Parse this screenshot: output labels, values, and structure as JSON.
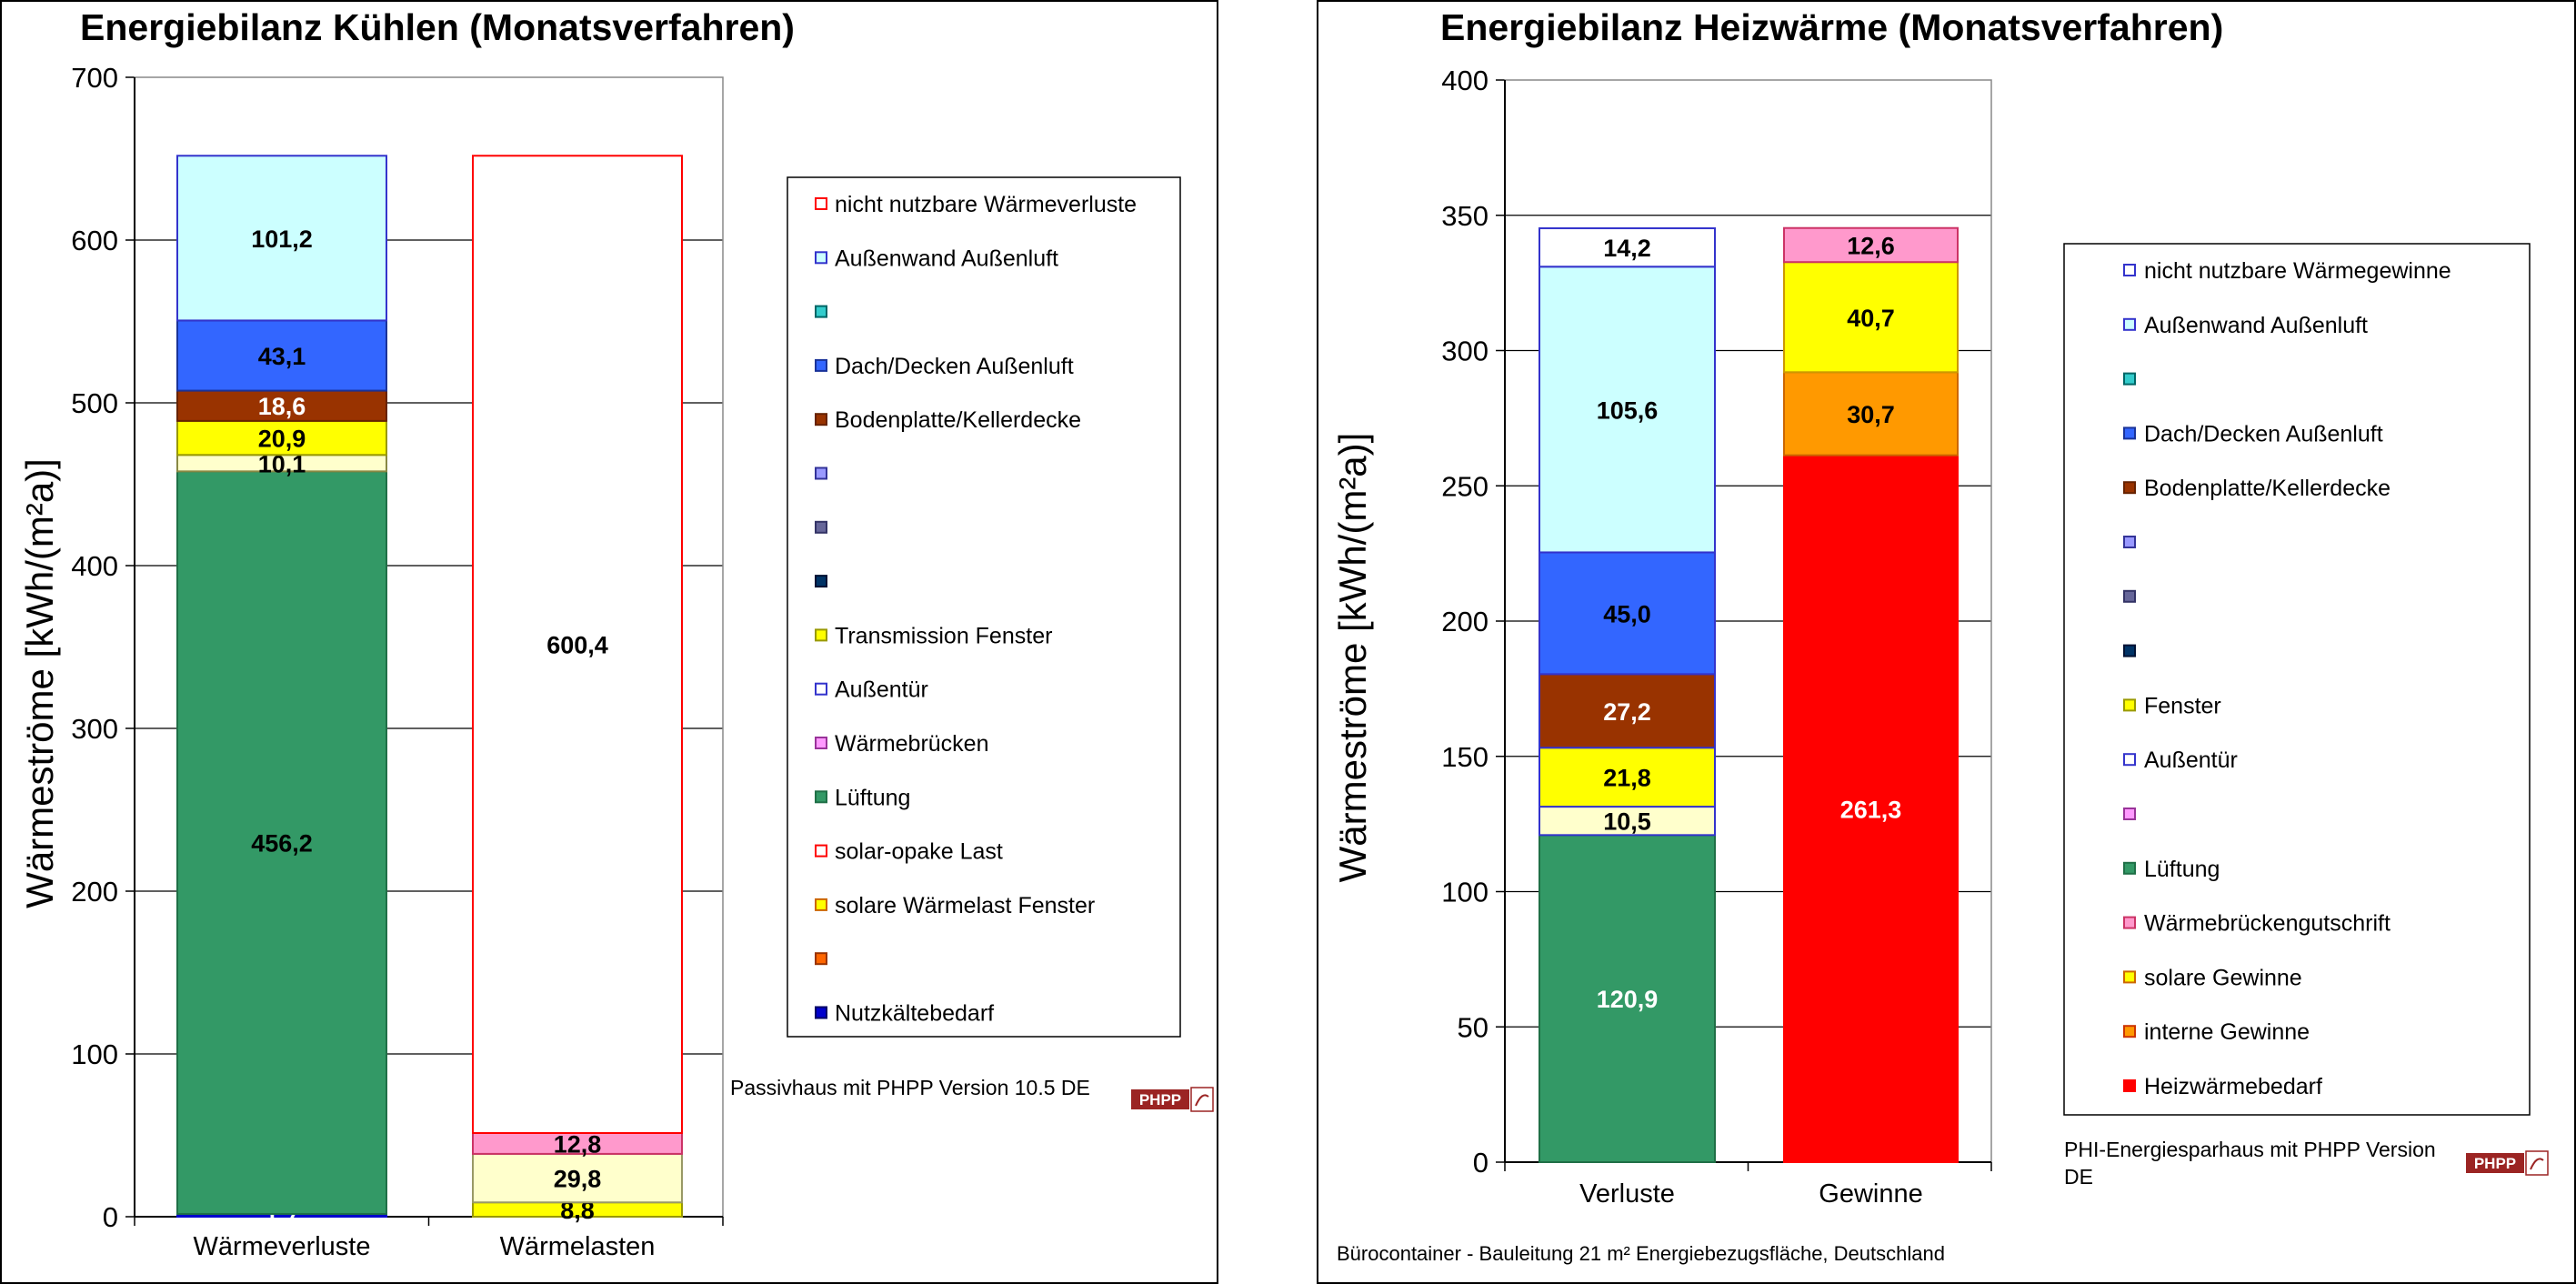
{
  "chart_data": [
    {
      "type": "bar",
      "stacked": true,
      "title": "Energiebilanz Kühlen (Monatsverfahren)",
      "ylabel": "Wärmeströme [kWh/(m²a)]",
      "ylim": [
        0,
        700
      ],
      "yticks": [
        0,
        100,
        200,
        300,
        400,
        500,
        600,
        700
      ],
      "grid": true,
      "legend_position": "right",
      "footer": "Passivhaus mit PHPP Version 10.5 DE",
      "logo_text": "PHPP",
      "categories": [
        "Wärmeverluste",
        "Wärmelasten"
      ],
      "stacks": [
        {
          "category": "Wärmeverluste",
          "segments": [
            {
              "value": 1.7,
              "label": "1,7",
              "color": "#0000CC",
              "text_color": "#ffffff",
              "border": "#0000CC"
            },
            {
              "value": 456.2,
              "label": "456,2",
              "color": "#339966",
              "text_color": "#000000",
              "border": "#1f6f46"
            },
            {
              "value": 10.1,
              "label": "10,1",
              "color": "#FFFFCC",
              "text_color": "#000000",
              "border": "#888844"
            },
            {
              "value": 20.9,
              "label": "20,9",
              "color": "#FFFF00",
              "text_color": "#000000",
              "border": "#999900"
            },
            {
              "value": 18.6,
              "label": "18,6",
              "color": "#993300",
              "text_color": "#ffffff",
              "border": "#662200"
            },
            {
              "value": 43.1,
              "label": "43,1",
              "color": "#3366FF",
              "text_color": "#000000",
              "border": "#1a3399"
            },
            {
              "value": 101.2,
              "label": "101,2",
              "color": "#CCFFFF",
              "text_color": "#000000",
              "border": "#3333CC"
            }
          ]
        },
        {
          "category": "Wärmelasten",
          "segments": [
            {
              "value": 8.8,
              "label": "8,8",
              "color": "#FFFF00",
              "text_color": "#000000",
              "border": "#999900"
            },
            {
              "value": 29.8,
              "label": "29,8",
              "color": "#FFFFCC",
              "text_color": "#000000",
              "border": "#999966"
            },
            {
              "value": 12.8,
              "label": "12,8",
              "color": "#FF99CC",
              "text_color": "#000000",
              "border": "#cc3366"
            },
            {
              "value": 600.4,
              "label": "600,4",
              "color": "#FFFFFF",
              "text_color": "#000000",
              "border": "#FF0000"
            }
          ]
        }
      ],
      "legend": [
        {
          "label": "nicht nutzbare Wärmeverluste",
          "color": "#FFFFFF",
          "border": "#FF0000"
        },
        {
          "label": "Außenwand Außenluft",
          "color": "#CCFFFF",
          "border": "#3333CC"
        },
        {
          "label": "",
          "color": "#33CCCC",
          "border": "#006666"
        },
        {
          "label": "Dach/Decken Außenluft",
          "color": "#3366FF",
          "border": "#1a3399"
        },
        {
          "label": "Bodenplatte/Kellerdecke",
          "color": "#993300",
          "border": "#662200"
        },
        {
          "label": "",
          "color": "#9999FF",
          "border": "#333399"
        },
        {
          "label": "",
          "color": "#666699",
          "border": "#333366"
        },
        {
          "label": "",
          "color": "#003366",
          "border": "#001133"
        },
        {
          "label": "Transmission Fenster",
          "color": "#FFFF00",
          "border": "#999900"
        },
        {
          "label": "Außentür",
          "color": "#FFFFFF",
          "border": "#3333CC"
        },
        {
          "label": "Wärmebrücken",
          "color": "#FF99FF",
          "border": "#993399"
        },
        {
          "label": "Lüftung",
          "color": "#339966",
          "border": "#1f6f46"
        },
        {
          "label": "solar-opake Last",
          "color": "#FFFFFF",
          "border": "#FF0000"
        },
        {
          "label": "solare Wärmelast Fenster",
          "color": "#FFFF00",
          "border": "#CC6600"
        },
        {
          "label": "",
          "color": "#FF6600",
          "border": "#993300"
        },
        {
          "label": "Nutzkältebedarf",
          "color": "#0000CC",
          "border": "#000066"
        }
      ]
    },
    {
      "type": "bar",
      "stacked": true,
      "title": "Energiebilanz Heizwärme (Monatsverfahren)",
      "ylabel": "Wärmeströme [kWh/(m²a)]",
      "ylim": [
        0,
        400
      ],
      "yticks": [
        0,
        50,
        100,
        150,
        200,
        250,
        300,
        350,
        400
      ],
      "grid": true,
      "legend_position": "right",
      "footer": "PHI-Energiesparhaus mit PHPP Version DE",
      "logo_text": "PHPP",
      "project_note": "Bürocontainer - Bauleitung     21 m² Energiebezugsfläche, Deutschland",
      "categories": [
        "Verluste",
        "Gewinne"
      ],
      "stacks": [
        {
          "category": "Verluste",
          "segments": [
            {
              "value": 120.9,
              "label": "120,9",
              "color": "#339966",
              "text_color": "#ffffff",
              "border": "#1f6f46"
            },
            {
              "value": 10.5,
              "label": "10,5",
              "color": "#FFFFCC",
              "text_color": "#000000",
              "border": "#3333CC"
            },
            {
              "value": 21.8,
              "label": "21,8",
              "color": "#FFFF00",
              "text_color": "#000000",
              "border": "#3333CC"
            },
            {
              "value": 27.2,
              "label": "27,2",
              "color": "#993300",
              "text_color": "#ffffff",
              "border": "#3333CC"
            },
            {
              "value": 45.0,
              "label": "45,0",
              "color": "#3366FF",
              "text_color": "#000000",
              "border": "#3333CC"
            },
            {
              "value": 105.6,
              "label": "105,6",
              "color": "#CCFFFF",
              "text_color": "#000000",
              "border": "#3333CC"
            },
            {
              "value": 14.2,
              "label": "14,2",
              "color": "#FFFFFF",
              "text_color": "#000000",
              "border": "#3333CC"
            }
          ]
        },
        {
          "category": "Gewinne",
          "segments": [
            {
              "value": 261.3,
              "label": "261,3",
              "color": "#FF0000",
              "text_color": "#ffffff",
              "border": "#FF0000"
            },
            {
              "value": 30.7,
              "label": "30,7",
              "color": "#FF9900",
              "text_color": "#000000",
              "border": "#CC6600"
            },
            {
              "value": 40.7,
              "label": "40,7",
              "color": "#FFFF00",
              "text_color": "#000000",
              "border": "#CC9900"
            },
            {
              "value": 12.6,
              "label": "12,6",
              "color": "#FF99CC",
              "text_color": "#000000",
              "border": "#cc3366"
            }
          ]
        }
      ],
      "legend": [
        {
          "label": "nicht nutzbare Wärmegewinne",
          "color": "#FFFFFF",
          "border": "#3333CC"
        },
        {
          "label": "Außenwand Außenluft",
          "color": "#CCFFFF",
          "border": "#3333CC"
        },
        {
          "label": "",
          "color": "#33CCCC",
          "border": "#006666"
        },
        {
          "label": "Dach/Decken Außenluft",
          "color": "#3366FF",
          "border": "#1a3399"
        },
        {
          "label": "Bodenplatte/Kellerdecke",
          "color": "#993300",
          "border": "#662200"
        },
        {
          "label": "",
          "color": "#9999FF",
          "border": "#333399"
        },
        {
          "label": "",
          "color": "#666699",
          "border": "#333366"
        },
        {
          "label": "",
          "color": "#003366",
          "border": "#001133"
        },
        {
          "label": "Fenster",
          "color": "#FFFF00",
          "border": "#999900"
        },
        {
          "label": "Außentür",
          "color": "#FFFFFF",
          "border": "#3333CC"
        },
        {
          "label": "",
          "color": "#FF99FF",
          "border": "#993399"
        },
        {
          "label": "Lüftung",
          "color": "#339966",
          "border": "#1f6f46"
        },
        {
          "label": "Wärmebrückengutschrift",
          "color": "#FF99CC",
          "border": "#cc3366"
        },
        {
          "label": "solare Gewinne",
          "color": "#FFFF00",
          "border": "#CC6600"
        },
        {
          "label": "interne Gewinne",
          "color": "#FF9900",
          "border": "#CC3300"
        },
        {
          "label": "Heizwärmebedarf",
          "color": "#FF0000",
          "border": "#FF0000"
        }
      ]
    }
  ]
}
